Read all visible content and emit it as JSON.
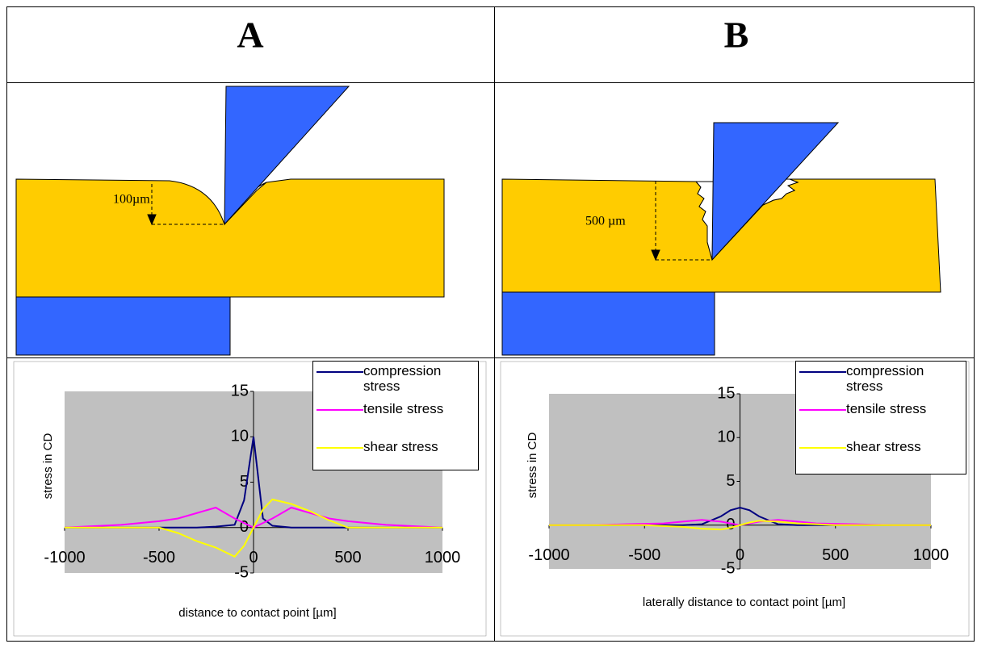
{
  "headers": [
    "A",
    "B"
  ],
  "diagrams": [
    {
      "depth_label": "100µm"
    },
    {
      "depth_label": "500 µm"
    }
  ],
  "chart_data": [
    {
      "type": "line",
      "x_label": "distance to contact point [µm]",
      "y_label": "stress in CD",
      "xlim": [
        -1000,
        1000
      ],
      "xticks": [
        -1000,
        -500,
        0,
        500,
        1000
      ],
      "ylim": [
        -5,
        15
      ],
      "yticks": [
        -5,
        0,
        5,
        10,
        15
      ],
      "x": [
        -1000,
        -900,
        -800,
        -700,
        -600,
        -500,
        -400,
        -300,
        -200,
        -100,
        -50,
        0,
        50,
        100,
        200,
        300,
        400,
        500,
        600,
        700,
        800,
        900,
        1000
      ],
      "series": [
        {
          "name": "compression stress",
          "color": "#000080",
          "values": [
            0,
            0,
            0,
            0,
            0,
            0,
            0,
            0,
            0.1,
            0.3,
            3,
            10,
            1,
            0.2,
            0,
            0,
            0,
            0,
            0,
            0,
            0,
            0,
            0
          ]
        },
        {
          "name": "tensile stress",
          "color": "#ff00ff",
          "values": [
            0,
            0.1,
            0.2,
            0.3,
            0.5,
            0.7,
            1,
            1.6,
            2.2,
            1,
            0.5,
            0,
            0.5,
            1,
            2.2,
            1.6,
            1,
            0.7,
            0.5,
            0.3,
            0.2,
            0.1,
            0
          ]
        },
        {
          "name": "shear stress",
          "color": "#ffff00",
          "values": [
            0,
            0,
            0,
            0,
            0,
            0,
            -0.6,
            -1.5,
            -2.2,
            -3.2,
            -2,
            0,
            2,
            3.1,
            2.6,
            1.8,
            0.8,
            0,
            0,
            0,
            0,
            0,
            0
          ]
        }
      ]
    },
    {
      "type": "line",
      "x_label": "laterally distance to contact point [µm]",
      "y_label": "stress in CD",
      "xlim": [
        -1000,
        1000
      ],
      "xticks": [
        -1000,
        -500,
        0,
        500,
        1000
      ],
      "ylim": [
        -5,
        15
      ],
      "yticks": [
        -5,
        0,
        5,
        10,
        15
      ],
      "x": [
        -1000,
        -900,
        -800,
        -700,
        -600,
        -500,
        -400,
        -300,
        -200,
        -100,
        -50,
        0,
        50,
        100,
        200,
        300,
        400,
        500,
        600,
        700,
        800,
        900,
        1000
      ],
      "series": [
        {
          "name": "compression stress",
          "color": "#000080",
          "values": [
            0,
            0,
            0,
            0,
            0,
            0,
            0,
            0,
            0.1,
            1,
            1.7,
            2,
            1.7,
            1,
            0.1,
            0,
            0,
            0,
            0,
            0,
            0,
            0,
            0
          ]
        },
        {
          "name": "tensile stress",
          "color": "#ff00ff",
          "values": [
            0,
            0,
            0,
            0.05,
            0.1,
            0.15,
            0.2,
            0.4,
            0.6,
            0.4,
            0.2,
            0,
            0.2,
            0.4,
            0.6,
            0.4,
            0.2,
            0.15,
            0.1,
            0.05,
            0,
            0,
            0
          ]
        },
        {
          "name": "shear stress",
          "color": "#ffff00",
          "values": [
            0,
            0,
            0,
            0,
            0,
            0,
            -0.1,
            -0.2,
            -0.4,
            -0.5,
            -0.3,
            0,
            0.3,
            0.5,
            0.4,
            0.2,
            0.1,
            0,
            0,
            0,
            0,
            0,
            0
          ]
        }
      ]
    }
  ]
}
